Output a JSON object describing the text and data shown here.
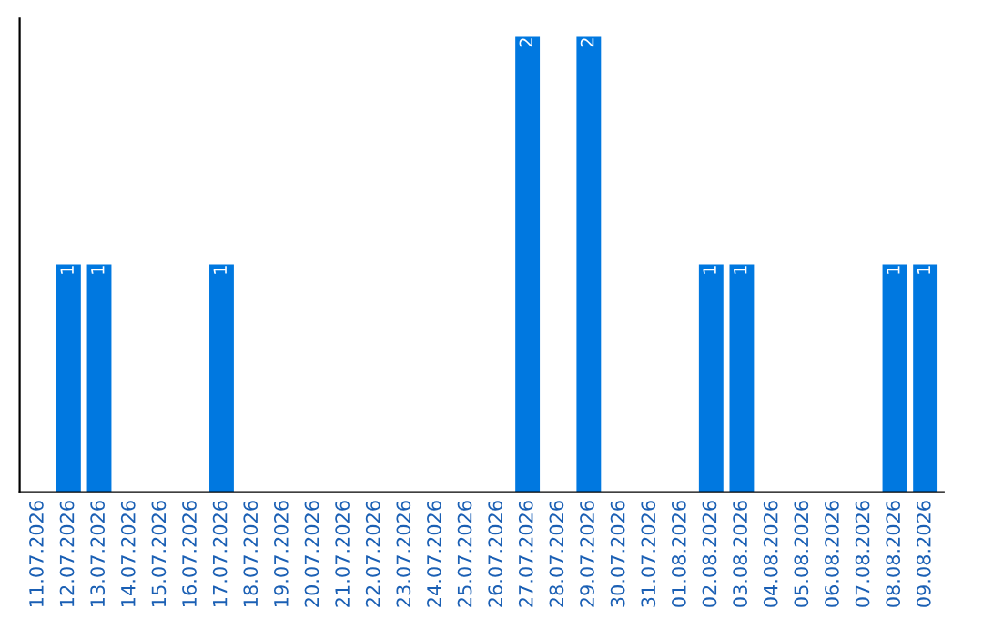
{
  "chart_data": {
    "type": "bar",
    "categories": [
      "11.07.2026",
      "12.07.2026",
      "13.07.2026",
      "14.07.2026",
      "15.07.2026",
      "16.07.2026",
      "17.07.2026",
      "18.07.2026",
      "19.07.2026",
      "20.07.2026",
      "21.07.2026",
      "22.07.2026",
      "23.07.2026",
      "24.07.2026",
      "25.07.2026",
      "26.07.2026",
      "27.07.2026",
      "28.07.2026",
      "29.07.2026",
      "30.07.2026",
      "31.07.2026",
      "01.08.2026",
      "02.08.2026",
      "03.08.2026",
      "04.08.2026",
      "05.08.2026",
      "06.08.2026",
      "07.08.2026",
      "08.08.2026",
      "09.08.2026"
    ],
    "values": [
      0,
      1,
      1,
      0,
      0,
      0,
      1,
      0,
      0,
      0,
      0,
      0,
      0,
      0,
      0,
      0,
      2,
      0,
      2,
      0,
      0,
      0,
      1,
      1,
      0,
      0,
      0,
      0,
      1,
      1
    ],
    "value_labels": [
      null,
      "1",
      "1",
      null,
      null,
      null,
      "1",
      null,
      null,
      null,
      null,
      null,
      null,
      null,
      null,
      null,
      "2",
      null,
      "2",
      null,
      null,
      null,
      "1",
      "1",
      null,
      null,
      null,
      null,
      "1",
      "1"
    ],
    "color": "#0078e0",
    "ylim": [
      0,
      2.08
    ],
    "tick_labels": "x",
    "grid": false,
    "legend": false
  }
}
